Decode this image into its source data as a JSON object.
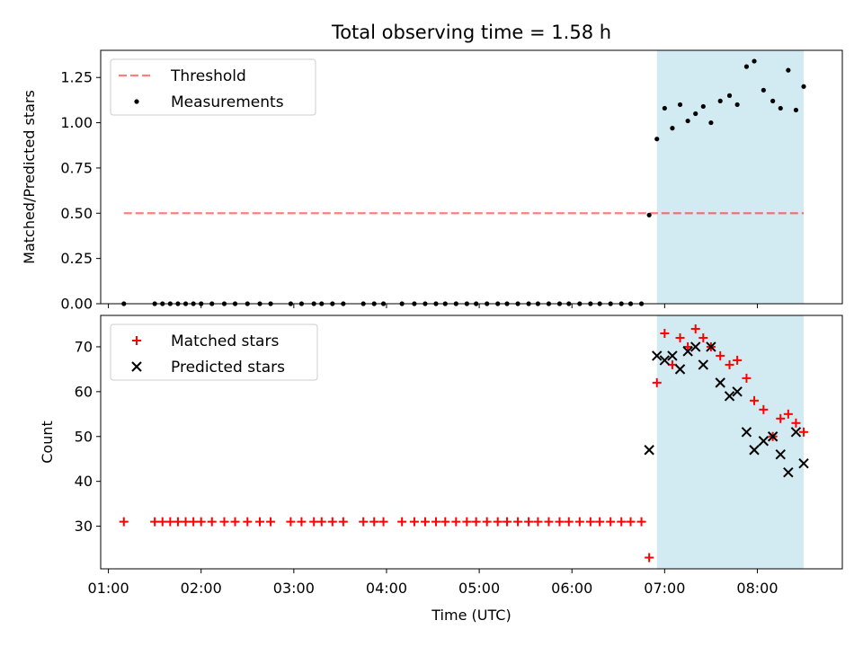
{
  "chart_data": [
    {
      "type": "scatter",
      "title": "Total observing time = 1.58 h",
      "xlabel": "",
      "ylabel": "Matched/Predicted stars",
      "xlim": [
        "00:55",
        "08:55"
      ],
      "ylim": [
        0,
        1.4
      ],
      "yticks": [
        "0.00",
        "0.25",
        "0.50",
        "0.75",
        "1.00",
        "1.25"
      ],
      "legend_position": "upper-left",
      "shaded_span": {
        "x": [
          "06:55",
          "08:30"
        ],
        "color": "#add8e6"
      },
      "series": [
        {
          "name": "Threshold",
          "kind": "dashed-line",
          "color": "#ff0000",
          "x": [
            "01:10",
            "08:30"
          ],
          "y": [
            0.5,
            0.5
          ]
        },
        {
          "name": "Measurements",
          "kind": "dot",
          "color": "#000000",
          "x": [
            "01:10",
            "01:30",
            "01:35",
            "01:40",
            "01:45",
            "01:50",
            "01:55",
            "02:00",
            "02:07",
            "02:15",
            "02:22",
            "02:30",
            "02:38",
            "02:45",
            "02:58",
            "03:05",
            "03:13",
            "03:18",
            "03:25",
            "03:32",
            "03:45",
            "03:52",
            "03:58",
            "04:10",
            "04:18",
            "04:25",
            "04:32",
            "04:38",
            "04:45",
            "04:52",
            "04:58",
            "05:05",
            "05:12",
            "05:18",
            "05:25",
            "05:32",
            "05:38",
            "05:45",
            "05:52",
            "05:58",
            "06:05",
            "06:12",
            "06:18",
            "06:25",
            "06:32",
            "06:38",
            "06:45",
            "06:50",
            "06:55",
            "07:00",
            "07:05",
            "07:10",
            "07:15",
            "07:20",
            "07:25",
            "07:30",
            "07:36",
            "07:42",
            "07:47",
            "07:53",
            "07:58",
            "08:04",
            "08:10",
            "08:15",
            "08:20",
            "08:25",
            "08:30"
          ],
          "y": [
            0,
            0,
            0,
            0,
            0,
            0,
            0,
            0,
            0,
            0,
            0,
            0,
            0,
            0,
            0,
            0,
            0,
            0,
            0,
            0,
            0,
            0,
            0,
            0,
            0,
            0,
            0,
            0,
            0,
            0,
            0,
            0,
            0,
            0,
            0,
            0,
            0,
            0,
            0,
            0,
            0,
            0,
            0,
            0,
            0,
            0,
            0,
            0.49,
            0.91,
            1.08,
            0.97,
            1.1,
            1.01,
            1.05,
            1.09,
            1.0,
            1.12,
            1.15,
            1.1,
            1.31,
            1.34,
            1.18,
            1.12,
            1.08,
            1.29,
            1.07,
            1.2
          ]
        }
      ]
    },
    {
      "type": "scatter",
      "title": "",
      "xlabel": "Time (UTC)",
      "ylabel": "Count",
      "xlim": [
        "00:55",
        "08:55"
      ],
      "ylim": [
        20.5,
        77
      ],
      "xticks": [
        "01:00",
        "02:00",
        "03:00",
        "04:00",
        "05:00",
        "06:00",
        "07:00",
        "08:00"
      ],
      "yticks": [
        "30",
        "40",
        "50",
        "60",
        "70"
      ],
      "legend_position": "upper-left",
      "shaded_span": {
        "x": [
          "06:55",
          "08:30"
        ],
        "color": "#add8e6"
      },
      "series": [
        {
          "name": "Matched stars",
          "kind": "plus",
          "color": "#ff0000",
          "x": [
            "01:10",
            "01:30",
            "01:35",
            "01:40",
            "01:45",
            "01:50",
            "01:55",
            "02:00",
            "02:07",
            "02:15",
            "02:22",
            "02:30",
            "02:38",
            "02:45",
            "02:58",
            "03:05",
            "03:13",
            "03:18",
            "03:25",
            "03:32",
            "03:45",
            "03:52",
            "03:58",
            "04:10",
            "04:18",
            "04:25",
            "04:32",
            "04:38",
            "04:45",
            "04:52",
            "04:58",
            "05:05",
            "05:12",
            "05:18",
            "05:25",
            "05:32",
            "05:38",
            "05:45",
            "05:52",
            "05:58",
            "06:05",
            "06:12",
            "06:18",
            "06:25",
            "06:32",
            "06:38",
            "06:45",
            "06:50",
            "06:55",
            "07:00",
            "07:05",
            "07:10",
            "07:15",
            "07:20",
            "07:25",
            "07:30",
            "07:36",
            "07:42",
            "07:47",
            "07:53",
            "07:58",
            "08:04",
            "08:10",
            "08:15",
            "08:20",
            "08:25",
            "08:30"
          ],
          "y": [
            31,
            31,
            31,
            31,
            31,
            31,
            31,
            31,
            31,
            31,
            31,
            31,
            31,
            31,
            31,
            31,
            31,
            31,
            31,
            31,
            31,
            31,
            31,
            31,
            31,
            31,
            31,
            31,
            31,
            31,
            31,
            31,
            31,
            31,
            31,
            31,
            31,
            31,
            31,
            31,
            31,
            31,
            31,
            31,
            31,
            31,
            31,
            23,
            62,
            73,
            66,
            72,
            70,
            74,
            72,
            70,
            68,
            66,
            67,
            63,
            58,
            56,
            50,
            54,
            55,
            53,
            51
          ]
        },
        {
          "name": "Predicted stars",
          "kind": "x",
          "color": "#000000",
          "x": [
            "06:50",
            "06:55",
            "07:00",
            "07:05",
            "07:10",
            "07:15",
            "07:20",
            "07:25",
            "07:30",
            "07:36",
            "07:42",
            "07:47",
            "07:53",
            "07:58",
            "08:04",
            "08:10",
            "08:15",
            "08:20",
            "08:25",
            "08:30"
          ],
          "y": [
            47,
            68,
            67,
            68,
            65,
            69,
            70,
            66,
            70,
            62,
            59,
            60,
            51,
            47,
            49,
            50,
            46,
            42,
            51,
            44
          ]
        }
      ]
    }
  ]
}
